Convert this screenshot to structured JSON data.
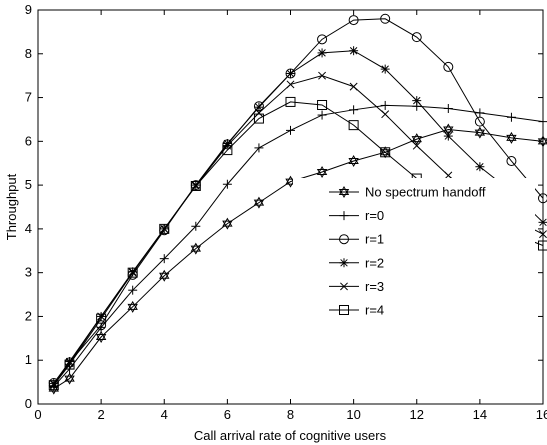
{
  "chart_data": {
    "type": "line",
    "title": "",
    "xlabel": "Call arrival rate of cognitive users",
    "ylabel": "Throughput",
    "xlim": [
      0,
      16
    ],
    "ylim": [
      0,
      9
    ],
    "xticks": [
      0,
      2,
      4,
      6,
      8,
      10,
      12,
      14,
      16
    ],
    "yticks": [
      0,
      1,
      2,
      3,
      4,
      5,
      6,
      7,
      8,
      9
    ],
    "grid": false,
    "legend_position": "bottom-right",
    "x": [
      0.5,
      1,
      2,
      3,
      4,
      5,
      6,
      7,
      8,
      9,
      10,
      11,
      12,
      13,
      14,
      15,
      16
    ],
    "series": [
      {
        "name": "No spectrum handoff",
        "marker": "hexagram",
        "values": [
          0.35,
          0.58,
          1.53,
          2.22,
          2.93,
          3.55,
          4.12,
          4.6,
          5.08,
          5.3,
          5.55,
          5.75,
          6.05,
          6.27,
          6.2,
          6.08,
          6.0
        ]
      },
      {
        "name": "r=0",
        "marker": "plus",
        "values": [
          0.4,
          0.8,
          1.75,
          2.6,
          3.32,
          4.06,
          5.02,
          5.85,
          6.25,
          6.6,
          6.72,
          6.82,
          6.8,
          6.75,
          6.65,
          6.55,
          6.45
        ]
      },
      {
        "name": "r=1",
        "marker": "circle",
        "values": [
          0.48,
          0.95,
          1.8,
          2.95,
          3.97,
          5.0,
          5.93,
          6.8,
          7.55,
          8.33,
          8.77,
          8.8,
          8.38,
          7.7,
          6.45,
          5.55,
          4.7
        ]
      },
      {
        "name": "r=2",
        "marker": "asterisk",
        "values": [
          0.47,
          0.97,
          2.0,
          3.02,
          4.0,
          5.0,
          5.95,
          6.78,
          7.55,
          8.02,
          8.07,
          7.65,
          6.93,
          6.12,
          5.42,
          4.85,
          4.15
        ]
      },
      {
        "name": "r=3",
        "marker": "x",
        "values": [
          0.45,
          0.93,
          2.0,
          3.0,
          4.0,
          4.98,
          5.9,
          6.65,
          7.3,
          7.5,
          7.25,
          6.62,
          5.9,
          5.22,
          4.63,
          4.25,
          3.88
        ]
      },
      {
        "name": "r=4",
        "marker": "square",
        "values": [
          0.43,
          0.9,
          1.95,
          3.0,
          4.0,
          4.98,
          5.8,
          6.52,
          6.9,
          6.83,
          6.37,
          5.75,
          5.15,
          4.6,
          4.17,
          3.9,
          3.62
        ]
      }
    ]
  }
}
